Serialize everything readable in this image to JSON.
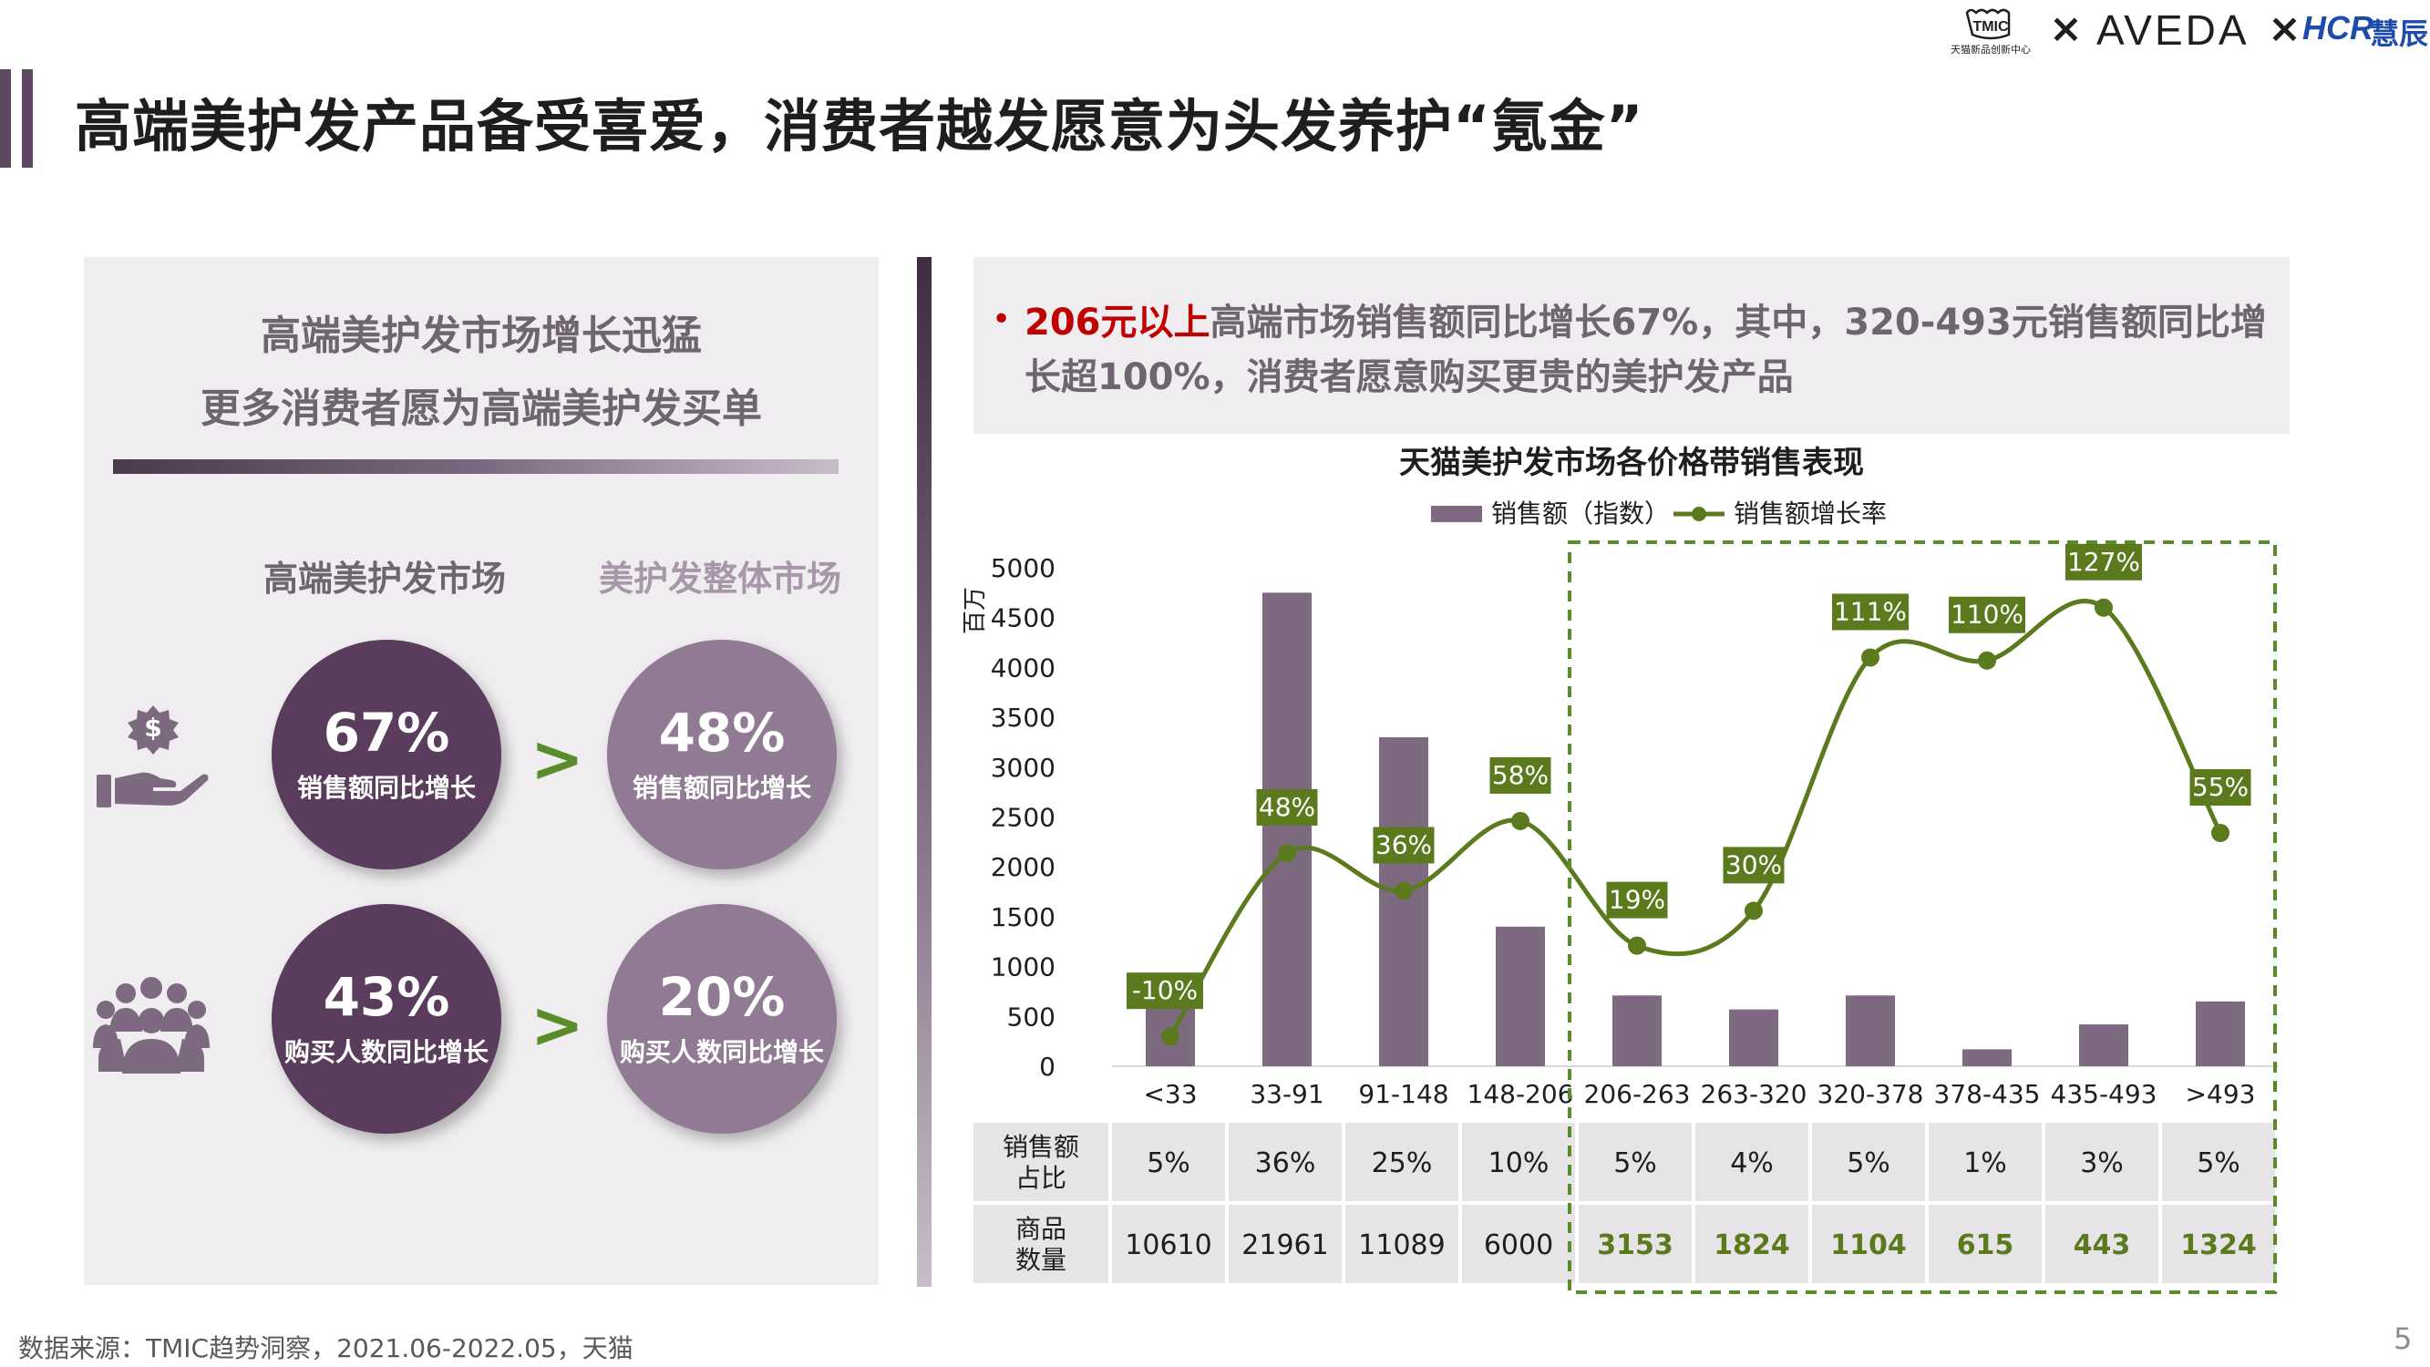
{
  "header": {
    "title": "高端美护发产品备受喜爱，消费者越发愿意为头发养护“氪金”",
    "logos": {
      "tmic_badge": "TMIC",
      "tmic_sub": "天猫新品创新中心",
      "x": "×",
      "aveda": "AVEDA",
      "hcr": "HCR",
      "hcr_cn": "慧辰"
    }
  },
  "left_panel": {
    "heading_line1": "高端美护发市场增长迅猛",
    "heading_line2": "更多消费者愿为高端美护发买单",
    "col_high": "高端美护发市场",
    "col_all": "美护发整体市场",
    "rows": [
      {
        "icon": "money-hand-icon",
        "high_value": "67%",
        "high_label": "销售额同比增长",
        "compare": ">",
        "all_value": "48%",
        "all_label": "销售额同比增长"
      },
      {
        "icon": "people-group-icon",
        "high_value": "43%",
        "high_label": "购买人数同比增长",
        "compare": ">",
        "all_value": "20%",
        "all_label": "购买人数同比增长"
      }
    ],
    "colors": {
      "dark_circle": "#5a3d5c",
      "light_circle": "#917a93",
      "compare": "#5b8c2a"
    }
  },
  "note": {
    "bullet": "•",
    "highlight": "206元以上",
    "text": "高端市场销售额同比增长67%，其中，320-493元销售额同比增长超100%，消费者愿意购买更贵的美护发产品"
  },
  "chart_data": {
    "type": "bar",
    "title": "天猫美护发市场各价格带销售表现",
    "ylabel": "百万",
    "ylim": [
      0,
      5000
    ],
    "yticks": [
      0,
      500,
      1000,
      1500,
      2000,
      2500,
      3000,
      3500,
      4000,
      4500,
      5000
    ],
    "categories": [
      "<33",
      "33-91",
      "91-148",
      "148-206",
      "206-263",
      "263-320",
      "320-378",
      "378-435",
      "435-493",
      ">493"
    ],
    "series": [
      {
        "name": "销售额（指数）",
        "kind": "bar",
        "color": "#7e6a80",
        "values": [
          600,
          4750,
          3300,
          1400,
          710,
          570,
          710,
          170,
          420,
          650
        ]
      },
      {
        "name": "销售额增长率",
        "kind": "line",
        "color": "#5b7a1e",
        "values": [
          -10,
          48,
          36,
          58,
          19,
          30,
          111,
          110,
          127,
          55
        ],
        "labels": [
          "-10%",
          "48%",
          "36%",
          "58%",
          "19%",
          "30%",
          "111%",
          "110%",
          "127%",
          "55%"
        ],
        "line_y_positions": [
          300,
          2140,
          1760,
          2460,
          1210,
          1560,
          4100,
          4070,
          4600,
          2340
        ]
      }
    ],
    "legend_placement": "top-center",
    "highlight_range": {
      "from": "206-263",
      "to": ">493",
      "style": "dashed",
      "color": "#5b8c2a"
    },
    "table": {
      "row_headers": [
        [
          "销售额",
          "占比"
        ],
        [
          "商品",
          "数量"
        ]
      ],
      "share": [
        "5%",
        "36%",
        "25%",
        "10%",
        "5%",
        "4%",
        "5%",
        "1%",
        "3%",
        "5%"
      ],
      "count": [
        "10610",
        "21961",
        "11089",
        "6000",
        "3153",
        "1824",
        "1104",
        "615",
        "443",
        "1324"
      ]
    }
  },
  "footer": {
    "source": "数据来源：TMIC趋势洞察，2021.06-2022.05，天猫",
    "page": "5"
  }
}
